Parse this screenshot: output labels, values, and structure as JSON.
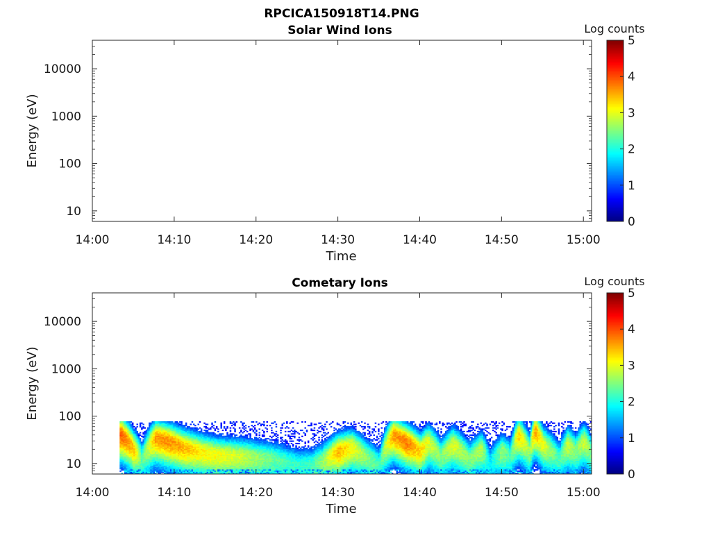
{
  "figure": {
    "title": "RPCICA150918T14.PNG"
  },
  "colormap": [
    "#00007f",
    "#0000ff",
    "#007fff",
    "#00ffff",
    "#7fff7f",
    "#ffff00",
    "#ff7f00",
    "#ff0000",
    "#7f0000"
  ],
  "chart_data": [
    {
      "type": "heatmap",
      "title": "Solar Wind Ions",
      "xlabel": "Time",
      "ylabel": "Energy (eV)",
      "xlim": [
        "14:00",
        "15:01"
      ],
      "ylim": [
        6,
        40000
      ],
      "yscale": "log",
      "xticks": [
        "14:00",
        "14:10",
        "14:20",
        "14:30",
        "14:40",
        "14:50",
        "15:00"
      ],
      "yticks": [
        10,
        100,
        1000,
        10000
      ],
      "ytick_labels": [
        "10",
        "100",
        "1000",
        "10000"
      ],
      "colorbar": {
        "label": "Log counts",
        "min": 0,
        "max": 5,
        "ticks": [
          "0",
          "1",
          "2",
          "3",
          "4",
          "5"
        ]
      },
      "grid": false,
      "data": []
    },
    {
      "type": "heatmap",
      "title": "Cometary Ions",
      "xlabel": "Time",
      "ylabel": "Energy (eV)",
      "xlim": [
        "14:00",
        "15:01"
      ],
      "ylim": [
        6,
        40000
      ],
      "yscale": "log",
      "xticks": [
        "14:00",
        "14:10",
        "14:20",
        "14:30",
        "14:40",
        "14:50",
        "15:00"
      ],
      "yticks": [
        10,
        100,
        1000,
        10000
      ],
      "ytick_labels": [
        "10",
        "100",
        "1000",
        "10000"
      ],
      "colorbar": {
        "label": "Log counts",
        "min": 0,
        "max": 5,
        "ticks": [
          "0",
          "1",
          "2",
          "3",
          "4",
          "5"
        ]
      },
      "grid": false,
      "data_coverage": {
        "start": "14:03:20",
        "end": "15:01",
        "max_energy": 80
      },
      "peak_profile": {
        "time": [
          "14:03:30",
          "14:05:00",
          "14:06:00",
          "14:07:40",
          "14:09:00",
          "14:11:00",
          "14:13:00",
          "14:15:00",
          "14:18:00",
          "14:22:00",
          "14:25:00",
          "14:26:40",
          "14:28:00",
          "14:30:00",
          "14:31:40",
          "14:33:20",
          "14:35:00",
          "14:36:40",
          "14:38:20",
          "14:40:00",
          "14:41:00",
          "14:42:30",
          "14:44:00",
          "14:46:00",
          "14:47:30",
          "14:48:30",
          "14:50:00",
          "14:51:00",
          "14:52:00",
          "14:53:20",
          "14:54:00",
          "14:55:00",
          "14:57:00",
          "14:58:00",
          "14:59:00",
          "15:00:00",
          "15:01:00"
        ],
        "energy_eV": [
          40,
          20,
          12,
          35,
          30,
          22,
          18,
          15,
          14,
          12,
          9,
          9,
          11,
          18,
          22,
          14,
          9,
          40,
          28,
          18,
          28,
          14,
          25,
          12,
          20,
          10,
          18,
          14,
          40,
          18,
          50,
          25,
          12,
          25,
          18,
          30,
          15
        ],
        "peak_log_counts": [
          3.9,
          3.4,
          2.3,
          3.6,
          3.7,
          3.5,
          3.2,
          3.1,
          2.9,
          2.4,
          2.1,
          2.2,
          2.6,
          3.5,
          3.1,
          2.6,
          2.2,
          3.6,
          3.8,
          3.3,
          3.0,
          2.5,
          3.0,
          2.5,
          2.8,
          1.8,
          2.6,
          2.2,
          3.4,
          2.6,
          3.6,
          3.0,
          2.2,
          2.9,
          2.5,
          2.9,
          2.4
        ]
      }
    }
  ]
}
